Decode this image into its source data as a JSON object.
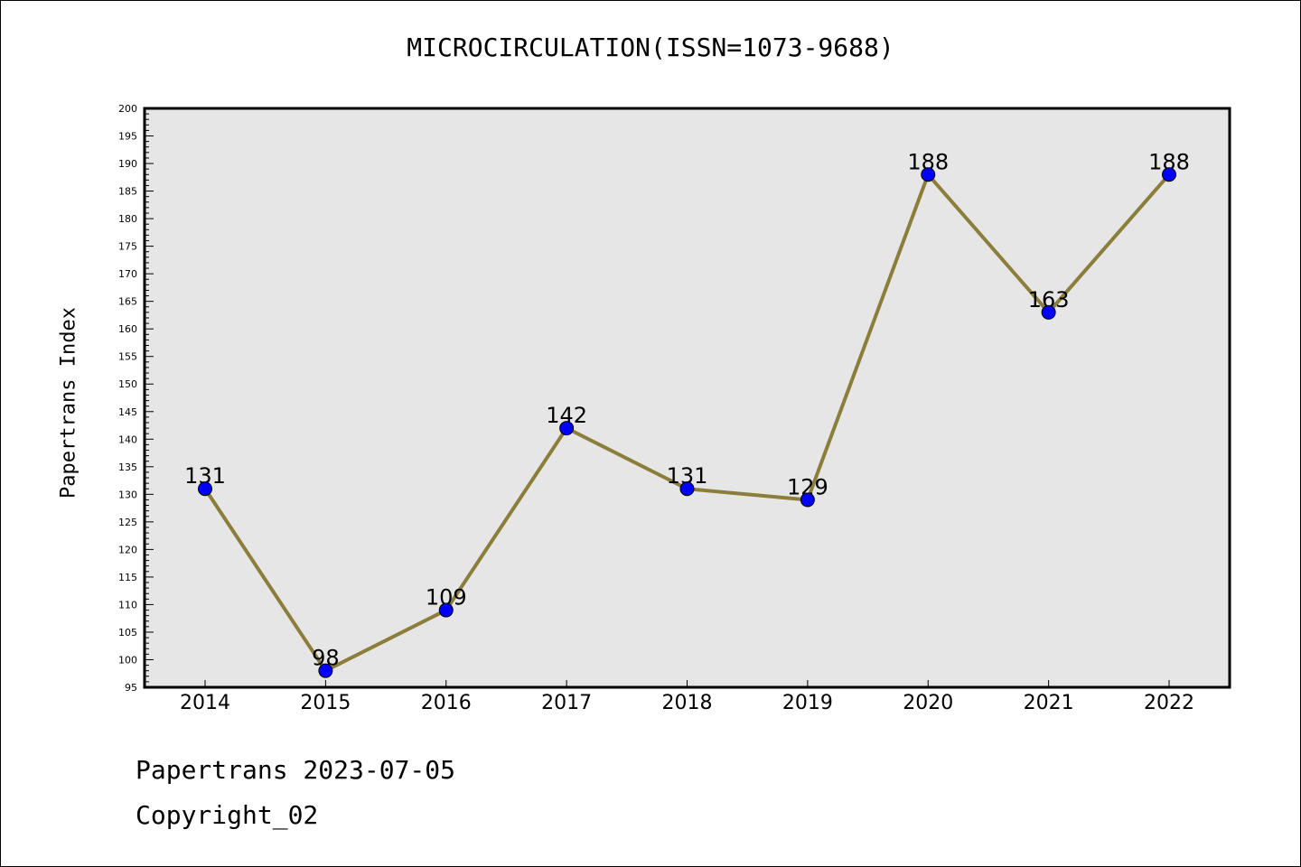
{
  "chart_data": {
    "type": "line",
    "title": "MICROCIRCULATION(ISSN=1073-9688)",
    "xlabel": "",
    "ylabel": "Papertrans Index",
    "categories": [
      "2014",
      "2015",
      "2016",
      "2017",
      "2018",
      "2019",
      "2020",
      "2021",
      "2022"
    ],
    "series": [
      {
        "values": [
          131,
          98,
          109,
          142,
          131,
          129,
          188,
          163,
          188
        ]
      }
    ],
    "ylim": [
      95,
      200
    ],
    "y_major_step": 5,
    "data_labels": true,
    "grid": false,
    "colors": {
      "line": "#8B7D3A",
      "marker": "#0000FF",
      "plot_background": "#E6E6E6"
    }
  },
  "footer": {
    "line1": "Papertrans 2023-07-05",
    "line2": "Copyright_02"
  }
}
